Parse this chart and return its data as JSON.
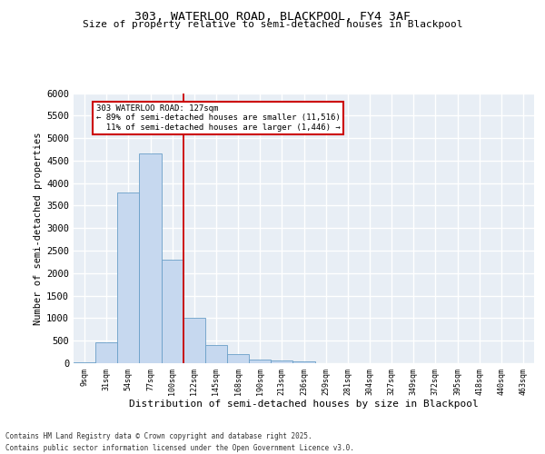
{
  "title1": "303, WATERLOO ROAD, BLACKPOOL, FY4 3AF",
  "title2": "Size of property relative to semi-detached houses in Blackpool",
  "xlabel": "Distribution of semi-detached houses by size in Blackpool",
  "ylabel": "Number of semi-detached properties",
  "categories": [
    "9sqm",
    "31sqm",
    "54sqm",
    "77sqm",
    "100sqm",
    "122sqm",
    "145sqm",
    "168sqm",
    "190sqm",
    "213sqm",
    "236sqm",
    "259sqm",
    "281sqm",
    "304sqm",
    "327sqm",
    "349sqm",
    "372sqm",
    "395sqm",
    "418sqm",
    "440sqm",
    "463sqm"
  ],
  "bar_values": [
    30,
    460,
    3800,
    4650,
    2300,
    1010,
    410,
    195,
    80,
    55,
    50,
    0,
    0,
    0,
    0,
    0,
    0,
    0,
    0,
    0,
    0
  ],
  "bar_color": "#c6d8ef",
  "bar_edge_color": "#6a9fc8",
  "ylim": [
    0,
    6000
  ],
  "yticks": [
    0,
    500,
    1000,
    1500,
    2000,
    2500,
    3000,
    3500,
    4000,
    4500,
    5000,
    5500,
    6000
  ],
  "annotation_text": "303 WATERLOO ROAD: 127sqm\n← 89% of semi-detached houses are smaller (11,516)\n  11% of semi-detached houses are larger (1,446) →",
  "annotation_box_color": "white",
  "annotation_box_edge_color": "#cc0000",
  "vline_color": "#cc0000",
  "footer_text": "Contains HM Land Registry data © Crown copyright and database right 2025.\nContains public sector information licensed under the Open Government Licence v3.0.",
  "bg_color": "#e8eef5",
  "grid_color": "white"
}
